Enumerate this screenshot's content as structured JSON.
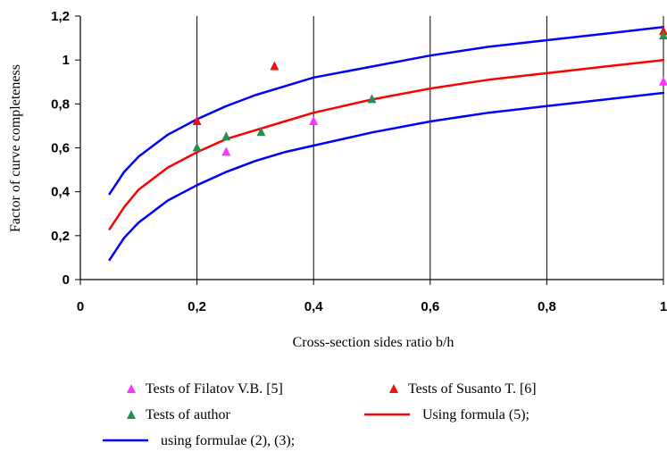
{
  "chart_data": {
    "type": "scatter",
    "xlabel": "Cross-section sides ratio b/h",
    "ylabel": "Factor of curve completeness",
    "xlim": [
      0,
      1
    ],
    "ylim": [
      0,
      1.2
    ],
    "xticks": [
      0,
      0.2,
      0.4,
      0.6,
      0.8,
      1
    ],
    "yticks": [
      0,
      0.2,
      0.4,
      0.6,
      0.8,
      1,
      1.2
    ],
    "xtick_labels": [
      "0",
      "0,2",
      "0,4",
      "0,6",
      "0,8",
      "1"
    ],
    "ytick_labels": [
      "0",
      "0,2",
      "0,4",
      "0,6",
      "0,8",
      "1",
      "1,2"
    ],
    "grid": "vertical",
    "legend_position": "bottom",
    "series": [
      {
        "name": "Tests of Filatov V.B. [5]",
        "kind": "points",
        "marker": "triangle",
        "color": "#ff33ff",
        "x": [
          0.25,
          0.4,
          1
        ],
        "y": [
          0.58,
          0.72,
          0.9
        ]
      },
      {
        "name": "Tests of Susanto T. [6]",
        "kind": "points",
        "marker": "triangle",
        "color": "#ee1111",
        "x": [
          0.2,
          0.333,
          1
        ],
        "y": [
          0.72,
          0.97,
          1.13
        ]
      },
      {
        "name": "Tests of author",
        "kind": "points",
        "marker": "triangle",
        "color": "#2e8b57",
        "x": [
          0.2,
          0.25,
          0.31,
          0.5,
          1
        ],
        "y": [
          0.6,
          0.65,
          0.67,
          0.82,
          1.11
        ]
      },
      {
        "name": "Using formula (5);",
        "kind": "line",
        "color": "#ff0000",
        "x": [
          0.05,
          0.075,
          0.1,
          0.15,
          0.2,
          0.25,
          0.3,
          0.35,
          0.4,
          0.5,
          0.6,
          0.7,
          0.8,
          0.9,
          1
        ],
        "y": [
          0.23,
          0.33,
          0.41,
          0.51,
          0.58,
          0.64,
          0.68,
          0.72,
          0.76,
          0.82,
          0.87,
          0.91,
          0.94,
          0.97,
          1.0
        ]
      },
      {
        "name": "using formulae (2), (3);",
        "kind": "line",
        "color": "#0000ff",
        "x": [
          0.05,
          0.075,
          0.1,
          0.15,
          0.2,
          0.25,
          0.3,
          0.35,
          0.4,
          0.5,
          0.6,
          0.7,
          0.8,
          0.9,
          1
        ],
        "y": [
          0.39,
          0.49,
          0.56,
          0.66,
          0.73,
          0.79,
          0.84,
          0.88,
          0.92,
          0.97,
          1.02,
          1.06,
          1.09,
          1.12,
          1.15
        ]
      },
      {
        "name": "",
        "kind": "line",
        "color": "#0000ff",
        "x": [
          0.05,
          0.075,
          0.1,
          0.15,
          0.2,
          0.25,
          0.3,
          0.35,
          0.4,
          0.5,
          0.6,
          0.7,
          0.8,
          0.9,
          1
        ],
        "y": [
          0.09,
          0.19,
          0.26,
          0.36,
          0.43,
          0.49,
          0.54,
          0.58,
          0.61,
          0.67,
          0.72,
          0.76,
          0.79,
          0.82,
          0.85
        ]
      }
    ]
  }
}
